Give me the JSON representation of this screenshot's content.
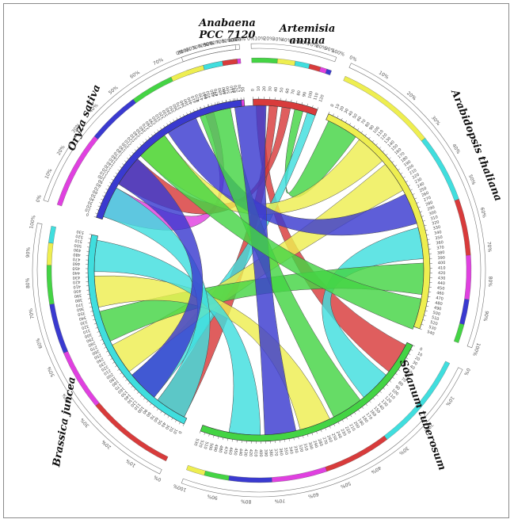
{
  "colors": {
    "blue": "#3a3ad0",
    "green": "#44d444",
    "yellow": "#eeee50",
    "cyan": "#40dede",
    "red": "#d83b3b",
    "magenta": "#e040e0",
    "ribbon_stroke": "#4a4a4a",
    "background": "#ffffff"
  },
  "segments": [
    {
      "id": "anabaena",
      "name": [
        "Anabaena",
        "PCC 7120"
      ],
      "label_position": "top",
      "ticks": [
        "0",
        "10",
        "20",
        "30",
        "40",
        "50"
      ]
    },
    {
      "id": "artemisia",
      "name": [
        "Artemisia",
        "annua"
      ],
      "label_position": "top",
      "ticks": [
        "0",
        "10",
        "20",
        "30",
        "40",
        "50",
        "60",
        "70",
        "80",
        "90",
        "100",
        "110",
        "120"
      ]
    },
    {
      "id": "arabidopsis",
      "name": [
        "Arabidopsis thaliana"
      ],
      "label_position": "right",
      "ticks": [
        "0",
        "10",
        "20",
        "30",
        "40",
        "50",
        "60",
        "70",
        "80",
        "90",
        "100",
        "110",
        "120",
        "130",
        "140",
        "150",
        "160",
        "170",
        "180",
        "190",
        "200",
        "210",
        "220",
        "230",
        "240",
        "250",
        "260",
        "270",
        "280",
        "290",
        "300",
        "310",
        "320",
        "330",
        "340",
        "350",
        "360",
        "370",
        "380",
        "390",
        "400",
        "410",
        "420",
        "430",
        "440",
        "450",
        "460",
        "470",
        "480",
        "490",
        "500",
        "510",
        "520",
        "530",
        "540"
      ]
    },
    {
      "id": "solanum",
      "name": [
        "Solanum tuberosum"
      ],
      "label_position": "bottom-right",
      "ticks": [
        "0",
        "10",
        "20",
        "30",
        "40",
        "50",
        "60",
        "70",
        "80",
        "90",
        "100",
        "110",
        "120",
        "130",
        "140",
        "150",
        "160",
        "170",
        "180",
        "190",
        "200",
        "210",
        "220",
        "230",
        "240",
        "250",
        "260",
        "270",
        "280",
        "290",
        "300",
        "310",
        "320",
        "330",
        "340",
        "350",
        "360",
        "370",
        "380",
        "390",
        "400",
        "410",
        "420",
        "430",
        "440",
        "450",
        "460",
        "470",
        "480",
        "490",
        "500",
        "510",
        "520",
        "530"
      ]
    },
    {
      "id": "brassica",
      "name": [
        "Brassica juncea"
      ],
      "label_position": "bottom-left",
      "ticks": [
        "0",
        "10",
        "20",
        "30",
        "40",
        "50",
        "60",
        "70",
        "80",
        "90",
        "100",
        "110",
        "120",
        "130",
        "140",
        "150",
        "160",
        "170",
        "180",
        "190",
        "200",
        "210",
        "220",
        "230",
        "240",
        "250",
        "260",
        "270",
        "280",
        "290",
        "300",
        "310",
        "320",
        "330",
        "340",
        "350",
        "360",
        "370",
        "380",
        "390",
        "400",
        "410",
        "420",
        "430",
        "440",
        "450",
        "460",
        "470",
        "480",
        "490",
        "500",
        "510",
        "520",
        "530"
      ]
    },
    {
      "id": "oryza",
      "name": [
        "Oryza sativa"
      ],
      "label_position": "left",
      "ticks": [
        "0",
        "10",
        "20",
        "30",
        "40",
        "50",
        "60",
        "70",
        "80",
        "90",
        "100",
        "110",
        "120",
        "130",
        "140",
        "150",
        "160",
        "170",
        "180",
        "190",
        "200",
        "210",
        "220",
        "230",
        "240",
        "250",
        "260",
        "270",
        "280",
        "290",
        "300",
        "310",
        "320",
        "330",
        "340",
        "350",
        "360",
        "370",
        "380",
        "390",
        "400",
        "410",
        "420",
        "430",
        "440",
        "450",
        "460",
        "470",
        "480",
        "490",
        "500",
        "510",
        "520",
        "530"
      ]
    }
  ],
  "percent_ticks": [
    "0%",
    "10%",
    "20%",
    "30%",
    "40%",
    "50%",
    "60%",
    "70%",
    "80%",
    "90%",
    "100%"
  ],
  "links": [
    {
      "from": "anabaena",
      "to": "oryza",
      "color": "magenta"
    },
    {
      "from": "artemisia",
      "to": "solanum",
      "color": "red"
    },
    {
      "from": "artemisia",
      "to": "brassica",
      "color": "red"
    },
    {
      "from": "artemisia",
      "to": "oryza",
      "color": "red"
    },
    {
      "from": "artemisia",
      "to": "arabidopsis",
      "color": "green"
    },
    {
      "from": "artemisia",
      "to": "brassica",
      "color": "cyan"
    },
    {
      "from": "arabidopsis",
      "to": "oryza",
      "color": "yellow"
    },
    {
      "from": "arabidopsis",
      "to": "brassica",
      "color": "yellow"
    },
    {
      "from": "arabidopsis",
      "to": "oryza",
      "color": "blue"
    },
    {
      "from": "arabidopsis",
      "to": "solanum",
      "color": "cyan"
    },
    {
      "from": "arabidopsis",
      "to": "brassica",
      "color": "green"
    },
    {
      "from": "solanum",
      "to": "oryza",
      "color": "green"
    },
    {
      "from": "solanum",
      "to": "brassica",
      "color": "yellow"
    },
    {
      "from": "solanum",
      "to": "oryza",
      "color": "blue"
    },
    {
      "from": "solanum",
      "to": "brassica",
      "color": "cyan"
    },
    {
      "from": "brassica",
      "to": "oryza",
      "color": "cyan"
    },
    {
      "from": "brassica",
      "to": "oryza",
      "color": "blue"
    },
    {
      "from": "oryza",
      "to": "arabidopsis",
      "color": "green"
    }
  ]
}
